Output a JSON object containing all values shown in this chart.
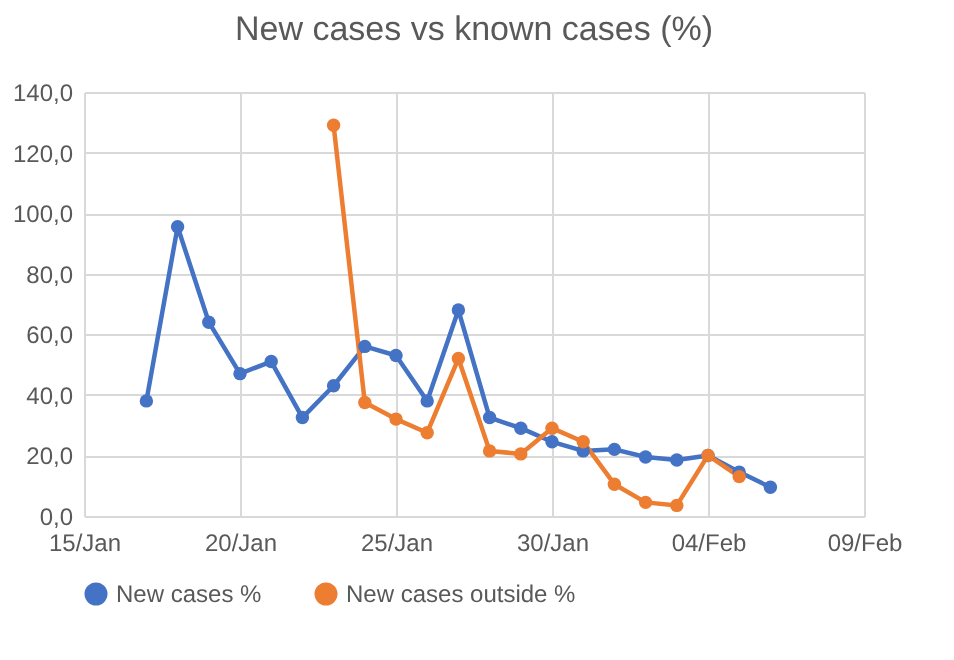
{
  "chart_data": {
    "type": "line",
    "title": "New cases vs known cases (%)",
    "xlim": [
      "--01-15",
      "--02-09"
    ],
    "xticks": [
      {
        "value": "--01-15",
        "label": "15/Jan"
      },
      {
        "value": "--01-20",
        "label": "20/Jan"
      },
      {
        "value": "--01-25",
        "label": "25/Jan"
      },
      {
        "value": "--01-30",
        "label": "30/Jan"
      },
      {
        "value": "--02-04",
        "label": "04/Feb"
      },
      {
        "value": "--02-09",
        "label": "09/Feb"
      }
    ],
    "ylim": [
      0,
      140
    ],
    "yticks": [
      {
        "value": 0,
        "label": "0,0"
      },
      {
        "value": 20,
        "label": "20,0"
      },
      {
        "value": 40,
        "label": "40,0"
      },
      {
        "value": 60,
        "label": "60,0"
      },
      {
        "value": 80,
        "label": "80,0"
      },
      {
        "value": 100,
        "label": "100,0"
      },
      {
        "value": 120,
        "label": "120,0"
      },
      {
        "value": 140,
        "label": "140,0"
      }
    ],
    "series": [
      {
        "name": "New cases %",
        "color": "#4472c4",
        "x": [
          "--01-17",
          "--01-18",
          "--01-19",
          "--01-20",
          "--01-21",
          "--01-22",
          "--01-23",
          "--01-24",
          "--01-25",
          "--01-26",
          "--01-27",
          "--01-28",
          "--01-29",
          "--01-30",
          "--01-31",
          "--02-01",
          "--02-02",
          "--02-03",
          "--02-04",
          "--02-05",
          "--02-06"
        ],
        "values": [
          38,
          95.5,
          64,
          47,
          51,
          32.5,
          43,
          56,
          53,
          38,
          68,
          32.5,
          29,
          24.5,
          21.5,
          22,
          19.5,
          18.5,
          20,
          14.5,
          9.5
        ]
      },
      {
        "name": "New cases outside %",
        "color": "#ed7d31",
        "x": [
          "--01-23",
          "--01-24",
          "--01-25",
          "--01-26",
          "--01-27",
          "--01-28",
          "--01-29",
          "--01-30",
          "--01-31",
          "--02-01",
          "--02-02",
          "--02-03",
          "--02-04",
          "--02-05"
        ],
        "values": [
          129,
          37.5,
          32,
          27.5,
          52,
          21.5,
          20.5,
          29,
          24.5,
          10.5,
          4.5,
          3.5,
          20,
          13
        ]
      }
    ],
    "grid": true,
    "legend": "bottom",
    "marker": "circle",
    "line_style": "solid"
  }
}
